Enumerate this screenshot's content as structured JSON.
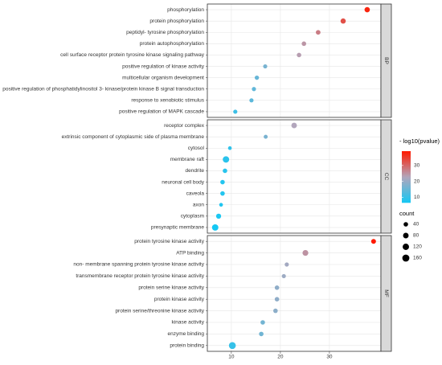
{
  "chart_data": {
    "type": "dot",
    "xlim": [
      5.1,
      40.5
    ],
    "xticks": [
      10,
      20,
      30
    ],
    "grid": true,
    "color_title": "- log10(pvalue)",
    "color_lim": [
      6.7,
      39.0
    ],
    "color_ticks": [
      10,
      20,
      30
    ],
    "color_scale": [
      "#14c8f4",
      "#b2a6bc",
      "#ff1a00"
    ],
    "size_title": "count",
    "size_legend": [
      40,
      80,
      120,
      160
    ],
    "facets": [
      {
        "label": "BP",
        "categories": [
          "phosphorylation",
          "protein phosphorylation",
          "peptidyl- tyrosine phosphorylation",
          "protein autophosphorylation",
          "cell surface receptor protein tyrosine kinase signaling pathway",
          "positive regulation of kinase activity",
          "multicellular organism development",
          "positive regulation of phosphatidylinositol 3- kinase/protein kinase B signal transduction",
          "response to xenobiotic stimulus",
          "positive regulation of MAPK cascade"
        ],
        "values": [
          37.7,
          32.8,
          27.7,
          24.8,
          23.8,
          16.9,
          15.2,
          14.6,
          14.1,
          10.8
        ],
        "sizes": [
          70,
          65,
          45,
          40,
          40,
          30,
          35,
          30,
          30,
          30
        ]
      },
      {
        "label": "CC",
        "categories": [
          "receptor complex",
          "extrinsic component of cytoplasmic side of plasma membrane",
          "cytosol",
          "membrane raft",
          "dendrite",
          "neuronal cell body",
          "caveola",
          "axon",
          "cytoplasm",
          "presynaptic membrane"
        ],
        "values": [
          22.8,
          17.0,
          9.7,
          8.9,
          8.7,
          8.2,
          8.2,
          7.9,
          7.4,
          6.7
        ],
        "sizes": [
          80,
          25,
          20,
          120,
          40,
          40,
          40,
          20,
          60,
          120
        ]
      },
      {
        "label": "MF",
        "categories": [
          "protein tyrosine kinase activity",
          "ATP binding",
          "non- membrane spanning protein tyrosine kinase activity",
          "transmembrane receptor protein tyrosine kinase activity",
          "protein serine kinase activity",
          "protein kinase activity",
          "protein serine/threonine kinase activity",
          "kinase activity",
          "enzyme binding",
          "protein binding"
        ],
        "values": [
          39.0,
          25.1,
          21.3,
          20.7,
          19.3,
          19.3,
          19.0,
          16.4,
          16.1,
          10.2
        ],
        "sizes": [
          50,
          90,
          30,
          30,
          40,
          40,
          40,
          40,
          40,
          150
        ]
      }
    ]
  }
}
